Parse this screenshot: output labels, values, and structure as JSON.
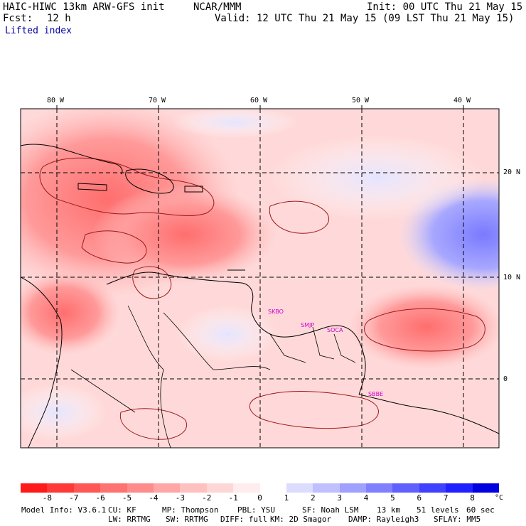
{
  "header": {
    "model": "HAIC-HIWC 13km ARW-GFS init",
    "org": "NCAR/MMM",
    "init": "Init: 00 UTC Thu 21 May 15",
    "fcst_label": "Fcst:",
    "fcst_value": "12 h",
    "valid": "Valid: 12 UTC Thu 21 May 15 (09 LST Thu 21 May 15)"
  },
  "field_name": "Lifted index",
  "map": {
    "lon_labels": [
      "80 W",
      "70 W",
      "60 W",
      "50 W",
      "40 W"
    ],
    "lat_labels": [
      "20 N",
      "10 N",
      "0"
    ],
    "stations": [
      "SKBO",
      "SMJP",
      "SOCA",
      "SBBE"
    ],
    "colors": {
      "frame": "#000000",
      "contour": "#a01818",
      "coast": "#000000",
      "station": "#cc00cc"
    }
  },
  "colorbar": {
    "tick_labels": [
      "-8",
      "-7",
      "-6",
      "-5",
      "-4",
      "-3",
      "-2",
      "-1",
      "0",
      "1",
      "2",
      "3",
      "4",
      "5",
      "6",
      "7",
      "8"
    ],
    "unit": "°C",
    "colors": [
      "#ff1a1a",
      "#ff3838",
      "#ff5656",
      "#ff7272",
      "#ff8c8c",
      "#ffa6a6",
      "#ffc0c0",
      "#ffd6d6",
      "#ffecec",
      "#ffffff",
      "#dcdcff",
      "#c0c0ff",
      "#a0a0ff",
      "#8080ff",
      "#6060ff",
      "#4040ff",
      "#2020ff",
      "#0000e0"
    ]
  },
  "footer": {
    "line1": [
      "Model Info: V3.6.1",
      "CU: KF",
      "MP: Thompson",
      "PBL: YSU",
      "SF: Noah LSM",
      "13 km",
      "51 levels",
      "60 sec"
    ],
    "line2": [
      "LW: RRTMG",
      "SW: RRTMG",
      "DIFF: full",
      "KM: 2D Smagor",
      "DAMP: Rayleigh3",
      "SFLAY: MM5"
    ]
  }
}
